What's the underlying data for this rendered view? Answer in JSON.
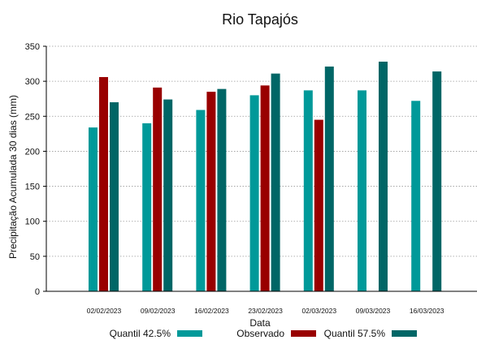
{
  "chart_data": {
    "type": "bar",
    "title": "Rio Tapajós",
    "xlabel": "Data",
    "ylabel": "Precipitação Acumulada 30 dias (mm)",
    "ylim": [
      0,
      350
    ],
    "yticks": [
      0,
      50,
      100,
      150,
      200,
      250,
      300,
      350
    ],
    "grid": true,
    "legend_position": "bottom",
    "categories": [
      "02/02/2023",
      "09/02/2023",
      "16/02/2023",
      "23/02/2023",
      "02/03/2023",
      "09/03/2023",
      "16/03/2023"
    ],
    "series": [
      {
        "name": "Quantil 42.5%",
        "color": "#009999",
        "values": [
          234,
          240,
          259,
          280,
          287,
          287,
          272
        ]
      },
      {
        "name": "Observado",
        "color": "#990000",
        "values": [
          306,
          291,
          285,
          294,
          245,
          null,
          null
        ]
      },
      {
        "name": "Quantil 57.5%",
        "color": "#006666",
        "values": [
          270,
          274,
          289,
          311,
          321,
          328,
          314
        ]
      }
    ]
  }
}
